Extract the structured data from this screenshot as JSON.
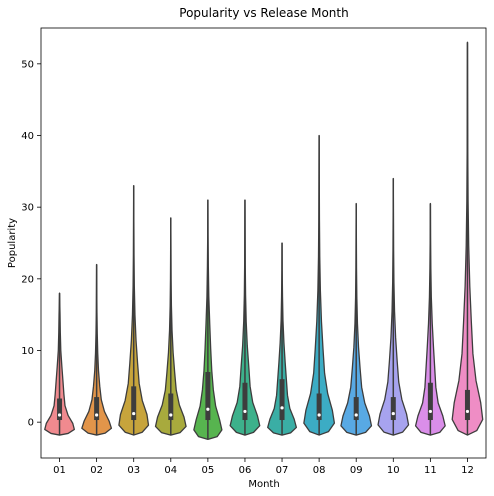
{
  "chart_data": {
    "type": "violin",
    "title": "Popularity vs Release Month",
    "xlabel": "Month",
    "ylabel": "Popularity",
    "ylim": [
      -5,
      55
    ],
    "yticks": [
      0,
      10,
      20,
      30,
      40,
      50
    ],
    "grid": false,
    "categories": [
      "01",
      "02",
      "03",
      "04",
      "05",
      "06",
      "07",
      "08",
      "09",
      "10",
      "11",
      "12"
    ],
    "colors": [
      "#f08a8f",
      "#e2954a",
      "#c7a43c",
      "#a8aa3d",
      "#57b44f",
      "#3db18b",
      "#3aaea5",
      "#3cacc4",
      "#58a9e4",
      "#a7a3ef",
      "#da8ee9",
      "#ef8dc5"
    ],
    "stats": [
      {
        "min": -1.8,
        "q1": 0.3,
        "median": 1.0,
        "q3": 3.3,
        "max": 18.0,
        "widths": [
          0.0,
          0.55,
          0.95,
          0.85,
          0.55,
          0.35,
          0.28,
          0.22,
          0.15,
          0.08,
          0.05,
          0.03,
          0.0
        ]
      },
      {
        "min": -1.8,
        "q1": 0.3,
        "median": 1.0,
        "q3": 3.5,
        "max": 22.0,
        "widths": [
          0.0,
          0.55,
          0.95,
          0.8,
          0.5,
          0.3,
          0.2,
          0.12,
          0.07,
          0.04,
          0.02,
          0.01,
          0.0
        ]
      },
      {
        "min": -1.8,
        "q1": 0.3,
        "median": 1.2,
        "q3": 5.0,
        "max": 33.0,
        "widths": [
          0.0,
          0.55,
          0.95,
          0.85,
          0.55,
          0.35,
          0.25,
          0.15,
          0.08,
          0.04,
          0.02,
          0.01,
          0.0
        ]
      },
      {
        "min": -1.8,
        "q1": 0.3,
        "median": 1.0,
        "q3": 4.0,
        "max": 28.5,
        "widths": [
          0.0,
          0.6,
          0.98,
          0.85,
          0.55,
          0.35,
          0.25,
          0.15,
          0.08,
          0.04,
          0.02,
          0.01,
          0.0
        ]
      },
      {
        "min": -2.4,
        "q1": 0.3,
        "median": 1.8,
        "q3": 7.0,
        "max": 31.0,
        "widths": [
          0.0,
          0.6,
          0.9,
          0.75,
          0.5,
          0.35,
          0.25,
          0.18,
          0.12,
          0.06,
          0.03,
          0.01,
          0.0
        ]
      },
      {
        "min": -1.8,
        "q1": 0.3,
        "median": 1.5,
        "q3": 5.5,
        "max": 31.0,
        "widths": [
          0.0,
          0.55,
          0.95,
          0.8,
          0.5,
          0.33,
          0.25,
          0.15,
          0.08,
          0.04,
          0.02,
          0.01,
          0.0
        ]
      },
      {
        "min": -1.8,
        "q1": 0.3,
        "median": 2.0,
        "q3": 6.0,
        "max": 25.0,
        "widths": [
          0.0,
          0.55,
          0.92,
          0.78,
          0.5,
          0.35,
          0.28,
          0.2,
          0.12,
          0.06,
          0.03,
          0.01,
          0.0
        ]
      },
      {
        "min": -1.8,
        "q1": 0.3,
        "median": 1.0,
        "q3": 4.0,
        "max": 40.0,
        "widths": [
          0.0,
          0.6,
          0.98,
          0.85,
          0.55,
          0.35,
          0.25,
          0.15,
          0.08,
          0.04,
          0.02,
          0.01,
          0.0
        ]
      },
      {
        "min": -1.8,
        "q1": 0.3,
        "median": 1.0,
        "q3": 3.5,
        "max": 30.5,
        "widths": [
          0.0,
          0.6,
          0.98,
          0.85,
          0.55,
          0.35,
          0.25,
          0.15,
          0.08,
          0.04,
          0.02,
          0.01,
          0.0
        ]
      },
      {
        "min": -1.8,
        "q1": 0.3,
        "median": 1.2,
        "q3": 3.5,
        "max": 34.0,
        "widths": [
          0.0,
          0.6,
          0.98,
          0.85,
          0.55,
          0.35,
          0.25,
          0.15,
          0.08,
          0.04,
          0.02,
          0.01,
          0.0
        ]
      },
      {
        "min": -1.8,
        "q1": 0.3,
        "median": 1.5,
        "q3": 5.5,
        "max": 30.5,
        "widths": [
          0.0,
          0.6,
          0.95,
          0.8,
          0.5,
          0.35,
          0.28,
          0.2,
          0.12,
          0.06,
          0.03,
          0.01,
          0.0
        ]
      },
      {
        "min": -1.8,
        "q1": 0.3,
        "median": 1.5,
        "q3": 4.5,
        "max": 53.0,
        "widths": [
          0.0,
          0.6,
          0.98,
          0.85,
          0.55,
          0.35,
          0.25,
          0.15,
          0.08,
          0.04,
          0.02,
          0.01,
          0.0
        ]
      }
    ]
  }
}
